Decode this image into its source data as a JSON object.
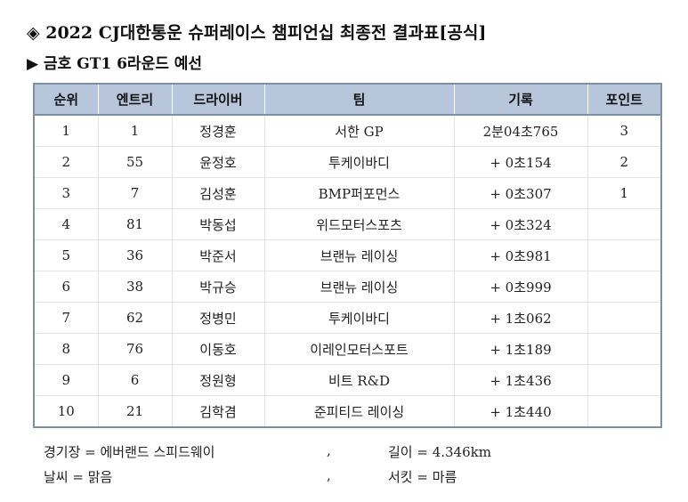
{
  "title": "◈ 2022 CJ대한통운 슈퍼레이스 챔피언십 최종전 결과표[공식]",
  "subtitle": "▶ 금호 GT1 6라운드 예선",
  "table": {
    "headers": [
      "순위",
      "엔트리",
      "드라이버",
      "팀",
      "기록",
      "포인트"
    ],
    "rows": [
      [
        "1",
        "1",
        "정경훈",
        "서한 GP",
        "2분04초765",
        "3"
      ],
      [
        "2",
        "55",
        "윤정호",
        "투케이바디",
        "+ 0초154",
        "2"
      ],
      [
        "3",
        "7",
        "김성훈",
        "BMP퍼포먼스",
        "+ 0초307",
        "1"
      ],
      [
        "4",
        "81",
        "박동섭",
        "위드모터스포츠",
        "+ 0초324",
        ""
      ],
      [
        "5",
        "36",
        "박준서",
        "브랜뉴 레이싱",
        "+ 0초981",
        ""
      ],
      [
        "6",
        "38",
        "박규승",
        "브랜뉴 레이싱",
        "+ 0초999",
        ""
      ],
      [
        "7",
        "62",
        "정병민",
        "투케이바디",
        "+ 1초062",
        ""
      ],
      [
        "8",
        "76",
        "이동호",
        "이레인모터스포트",
        "+ 1초189",
        ""
      ],
      [
        "9",
        "6",
        "정원형",
        "비트 R&D",
        "+ 1초436",
        ""
      ],
      [
        "10",
        "21",
        "김학겸",
        "준피티드 레이싱",
        "+ 1초440",
        ""
      ]
    ]
  },
  "footer": {
    "track_label": "경기장 = 에버랜드 스피드웨이",
    "length_label": "길이 = 4.346km",
    "weather_label": "날씨 = 맑음",
    "circuit_label": "서킷 = 마름",
    "separator": ","
  }
}
